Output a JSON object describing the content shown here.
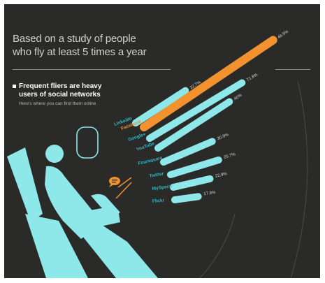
{
  "header": {
    "title_line1": "Based on a study of people",
    "title_line2": "who fly at least 5 times a year"
  },
  "callout": {
    "title_line1": "Frequent fliers are heavy",
    "title_line2": "users of social networks",
    "subtitle": "Here's where you can find them online"
  },
  "colors": {
    "background": "#2a2a28",
    "bar_default": "#8ee8ea",
    "bar_highlight": "#f2922e",
    "label_default": "#2fb9c7",
    "label_highlight": "#f2922e",
    "seat": "#8ee8ea"
  },
  "icons": {
    "seat": "airplane-seat-icon",
    "window": "airplane-window-icon",
    "chat": "chat-bubble-icon"
  },
  "chart_data": {
    "type": "bar",
    "title": "",
    "orientation": "radial-fan",
    "categories": [
      "LinkedIn",
      "Facebook",
      "Google+",
      "YouTube",
      "Foursquare",
      "Twitter",
      "MySpace",
      "Flickr"
    ],
    "values": [
      32.7,
      46.9,
      71.8,
      40.0,
      30.9,
      25.7,
      22.9,
      17.9
    ],
    "data_labels": [
      "32.7%",
      "46.9%",
      "71.8%",
      "40%",
      "30.9%",
      "25.7%",
      "22.9%",
      "17.9%"
    ],
    "highlight_index": 1,
    "ylim": [
      0,
      50
    ],
    "grid": false,
    "legend": "none"
  }
}
